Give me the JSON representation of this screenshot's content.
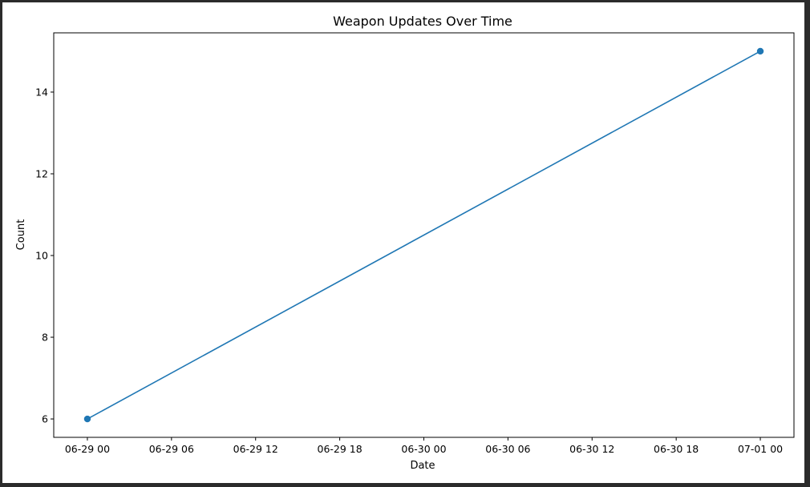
{
  "chart_data": {
    "type": "line",
    "title": "Weapon Updates Over Time",
    "xlabel": "Date",
    "ylabel": "Count",
    "x": [
      "2025-06-29 00:00",
      "2025-07-01 00:00"
    ],
    "series": [
      {
        "values": [
          6,
          15
        ],
        "color": "#1f77b4",
        "marker": "circle"
      }
    ],
    "xticks": [
      "06-29 00",
      "06-29 06",
      "06-29 12",
      "06-29 18",
      "06-30 00",
      "06-30 06",
      "06-30 12",
      "06-30 18",
      "07-01 00"
    ],
    "yticks": [
      6,
      8,
      10,
      12,
      14
    ],
    "xlim": [
      "2025-06-28 21:36",
      "2025-07-01 02:24"
    ],
    "ylim": [
      5.55,
      15.45
    ],
    "grid": false,
    "legend": "none"
  }
}
